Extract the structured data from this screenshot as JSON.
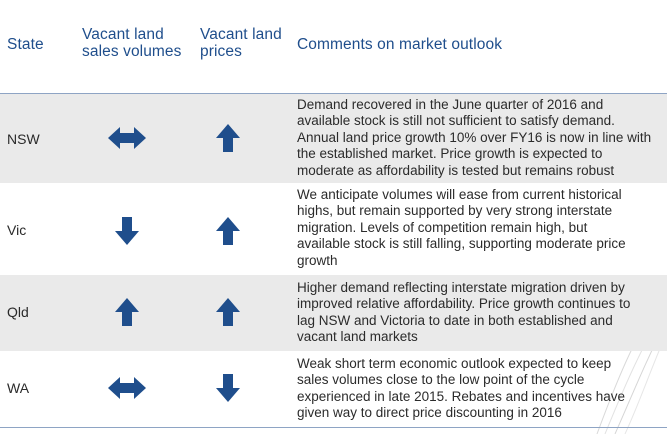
{
  "header": {
    "state": "State",
    "volumes_line1": "Vacant land",
    "volumes_line2": "sales volumes",
    "prices_line1": "Vacant land",
    "prices_line2": "prices",
    "comments": "Comments on market outlook"
  },
  "colors": {
    "header_text": "#1f4e8c",
    "icon": "#1f4e8c",
    "row_shade": "#eaeaea"
  },
  "rows": [
    {
      "state": "NSW",
      "volumes_icon": "double-arrow-icon",
      "prices_icon": "up-arrow-icon",
      "comment_lines": [
        "Demand recovered in the June quarter of 2016 and",
        "available stock is still not sufficient to satisfy demand.",
        "Annual land price growth 10% over FY16 is now in line with",
        "the established market. Price growth is expected to",
        "moderate as affordability is tested but remains robust"
      ]
    },
    {
      "state": "Vic",
      "volumes_icon": "down-arrow-icon",
      "prices_icon": "up-arrow-icon",
      "comment_lines": [
        "We anticipate volumes will ease from current historical",
        "highs, but remain supported by very strong interstate",
        "migration. Levels of competition remain high, but",
        "available stock is still falling, supporting moderate price",
        "growth"
      ]
    },
    {
      "state": "Qld",
      "volumes_icon": "up-arrow-icon",
      "prices_icon": "up-arrow-icon",
      "comment_lines": [
        "Higher demand reflecting interstate migration driven by",
        "improved relative affordability. Price growth continues to",
        "lag NSW and Victoria to date in both established and",
        "vacant land markets"
      ]
    },
    {
      "state": "WA",
      "volumes_icon": "double-arrow-icon",
      "prices_icon": "down-arrow-icon",
      "comment_lines": [
        "Weak short term economic outlook expected to keep",
        "sales volumes close to the low point of the cycle",
        "experienced in late 2015. Rebates and incentives have",
        "given way to direct price discounting in 2016"
      ]
    }
  ]
}
